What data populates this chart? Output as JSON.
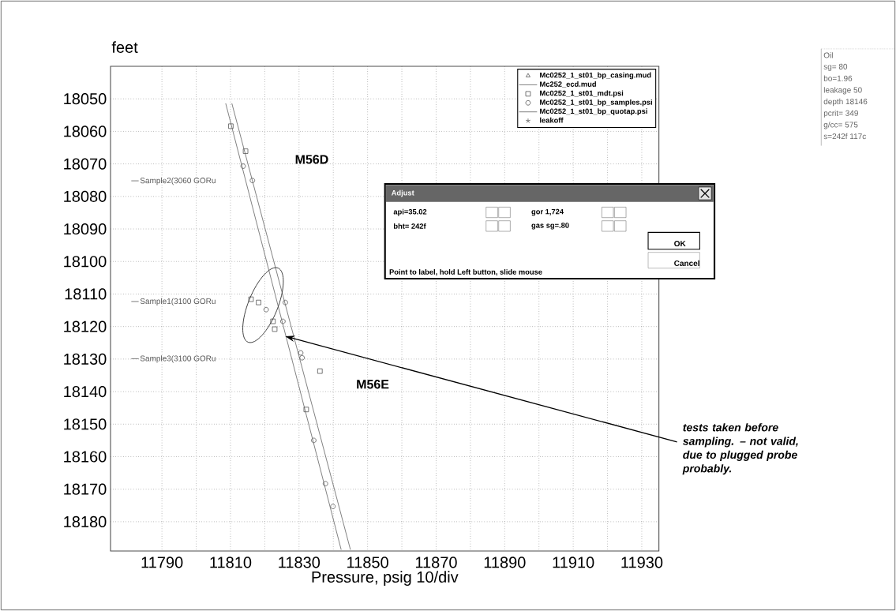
{
  "chart_data": {
    "type": "scatter",
    "xlabel": "Pressure, psig  10/div",
    "ylabel": "feet",
    "xlim": [
      11775,
      11935
    ],
    "ylim": [
      18189,
      18040
    ],
    "xticks": [
      11790,
      {
        "value": 11800,
        "label": null
      },
      11810,
      {
        "value": 11820,
        "label": null
      },
      11830,
      {
        "value": 11840,
        "label": null
      },
      11850,
      {
        "value": 11860,
        "label": null
      },
      11870,
      {
        "value": 11880,
        "label": null
      },
      11890,
      {
        "value": 11900,
        "label": null
      },
      11910,
      {
        "value": 11920,
        "label": null
      },
      11930
    ],
    "yticks": [
      18050,
      18060,
      18070,
      18080,
      18090,
      18100,
      18110,
      18120,
      18130,
      18140,
      18150,
      18160,
      18170,
      18180
    ],
    "grid": true,
    "legend": "top right",
    "series": [
      {
        "name": "Mc0252_1_st01_bp_casing.mud",
        "marker": "triangle",
        "color": "#555555"
      },
      {
        "name": "Mc252_ecd.mud",
        "type": "line",
        "marker": "none",
        "color": "#777777",
        "x": [
          11808.6,
          11842.3
        ],
        "values": [
          18051.4,
          18188.6
        ]
      },
      {
        "name": "Mc0252_1_st01_mdt.psi",
        "marker": "square",
        "color": "#555555",
        "x": [
          11810.1,
          11814.4,
          11816,
          11818.2,
          11822.4,
          11822.9,
          11836.1,
          11832.1
        ],
        "values": [
          18058.4,
          18066.1,
          18111.6,
          18112.6,
          18118.4,
          18120.8,
          18133.7,
          18145.5
        ]
      },
      {
        "name": "Mc0252_1_st01_bp_samples.psi",
        "marker": "circle",
        "color": "#555555",
        "x": [
          11813.7,
          11816.4,
          11820.4,
          11826,
          11825.3,
          11830.5,
          11830.9,
          11834.3,
          11837.7,
          11839.9
        ],
        "values": [
          18070.7,
          18075.1,
          18114.8,
          18112.6,
          18118.4,
          18128.1,
          18129.6,
          18155,
          18168.3,
          18175.3
        ]
      },
      {
        "name": "Mc0252_1_st01_bp_quotap.psi",
        "type": "line",
        "marker": "none",
        "color": "#777777",
        "x": [
          11810.4,
          11845
        ],
        "values": [
          18051.4,
          18188.6
        ]
      },
      {
        "name": "leakoff",
        "marker": "star",
        "color": "#555555"
      }
    ],
    "annotations": [
      "M56D",
      "M56E",
      "Sample2(3060 GORu",
      "Sample1(3100 GORu",
      "Sample3(3100 GORu",
      {
        "text": "tests taken before sampling. – not valid, due to plugged probe probably.",
        "x": 11826,
        "y": 18123
      },
      "Adjust",
      "api=35.02",
      "bht= 242f",
      "gor 1,724",
      "gas sg=.80",
      "OK",
      "Cancel",
      "Point to label, hold Left button, slide mouse",
      "Oil",
      "sg= 80",
      "bo=1.96",
      "leakage 50",
      "depth 18146",
      "pcrit= 349",
      "g/cc= 575",
      "s=242f 117c"
    ]
  }
}
